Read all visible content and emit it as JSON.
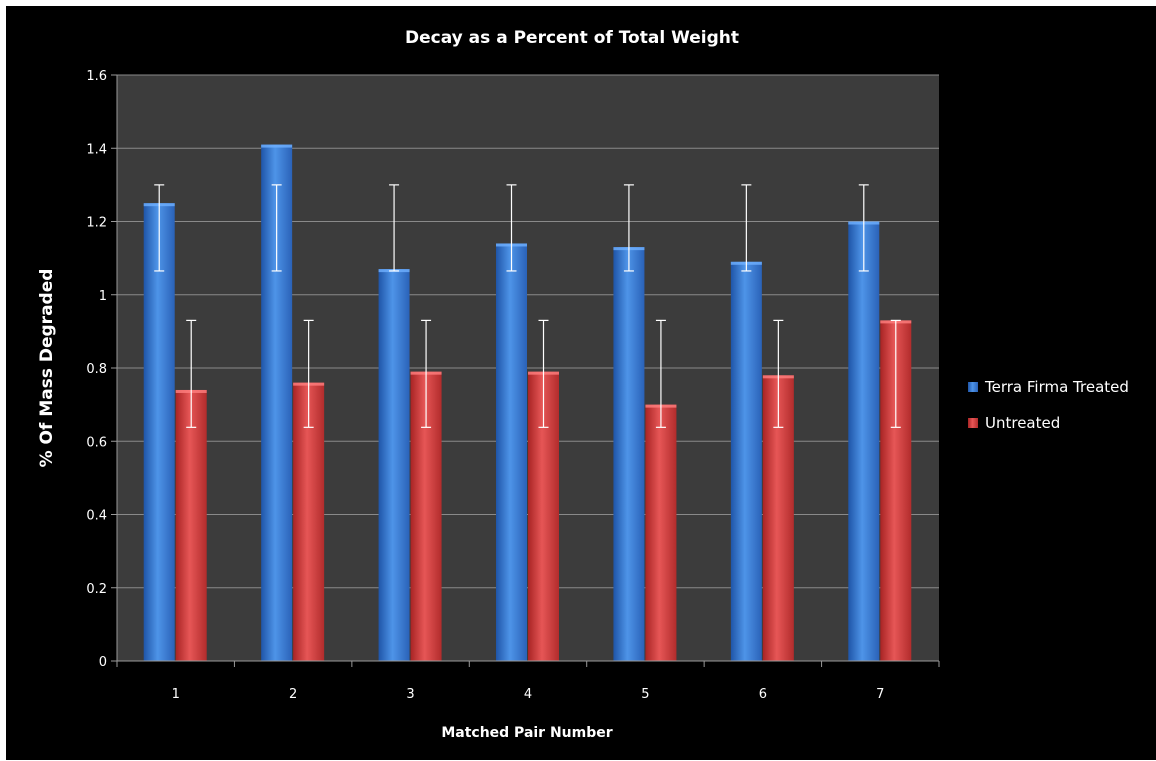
{
  "chart_data": {
    "type": "bar",
    "title": "Decay as a Percent of Total Weight",
    "xlabel": "Matched Pair Number",
    "ylabel": "% Of Mass Degraded",
    "categories": [
      "1",
      "2",
      "3",
      "4",
      "5",
      "6",
      "7"
    ],
    "ylim": [
      0,
      1.6
    ],
    "yticks": [
      "0",
      "0.2",
      "0.4",
      "0.6",
      "0.8",
      "1",
      "1.2",
      "1.4",
      "1.6"
    ],
    "ytick_values": [
      0,
      0.2,
      0.4,
      0.6,
      0.8,
      1,
      1.2,
      1.4,
      1.6
    ],
    "grid": true,
    "legend_position": "right",
    "series": [
      {
        "name": "Terra Firma Treated",
        "color": "#3a7fd5",
        "values": [
          1.25,
          1.41,
          1.07,
          1.14,
          1.13,
          1.09,
          1.2
        ],
        "error_low": [
          1.065,
          1.065,
          1.065,
          1.065,
          1.065,
          1.065,
          1.065
        ],
        "error_high": [
          1.3,
          1.3,
          1.3,
          1.3,
          1.3,
          1.3,
          1.3
        ]
      },
      {
        "name": "Untreated",
        "color": "#d63a3a",
        "values": [
          0.74,
          0.76,
          0.79,
          0.79,
          0.7,
          0.78,
          0.93
        ],
        "error_low": [
          0.638,
          0.638,
          0.638,
          0.638,
          0.638,
          0.638,
          0.638
        ],
        "error_high": [
          0.93,
          0.93,
          0.93,
          0.93,
          0.93,
          0.93,
          0.93
        ]
      }
    ]
  }
}
